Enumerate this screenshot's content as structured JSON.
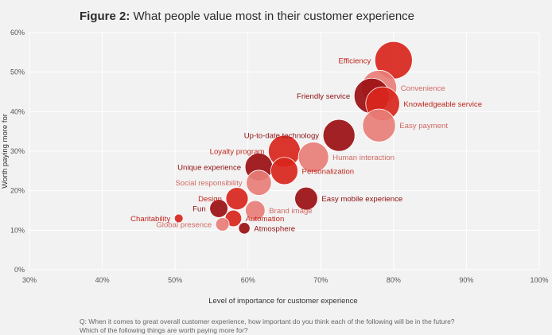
{
  "title": {
    "lead": "Figure 2:",
    "text": "What people value most in their customer experience"
  },
  "note": {
    "line1": "Q: When it comes to great overall customer experience, how important do you think each of the following will be in the future?",
    "line2": "Which of the following things are worth paying more for?"
  },
  "colors": {
    "background": "#f2f2f2",
    "grid": "#ffffff"
  },
  "chart_data": {
    "type": "scatter",
    "title": "What people value most in their customer experience",
    "xlabel": "Level of importance for customer experience",
    "ylabel": "Worth paying more for",
    "xlim": [
      30,
      100
    ],
    "ylim": [
      0,
      60
    ],
    "xticks": [
      30,
      40,
      50,
      60,
      70,
      80,
      90,
      100
    ],
    "yticks": [
      0,
      10,
      20,
      30,
      40,
      50,
      60
    ],
    "tick_suffix": "%",
    "grid": true,
    "points": [
      {
        "label": "Efficiency",
        "x": 80,
        "y": 53,
        "size": 100,
        "color": "#d9261c",
        "label_side": "left",
        "label_color": "#c0261d"
      },
      {
        "label": "Convenience",
        "x": 78,
        "y": 46,
        "size": 88,
        "color": "#e87e78",
        "label_side": "right",
        "label_color": "#d06a64"
      },
      {
        "label": "Friendly service",
        "x": 77,
        "y": 44,
        "size": 88,
        "color": "#9b0f12",
        "label_side": "left",
        "label_color": "#8e1113"
      },
      {
        "label": "Knowledgeable service",
        "x": 78.5,
        "y": 42,
        "size": 80,
        "color": "#d9261c",
        "label_side": "right",
        "label_color": "#c0261d"
      },
      {
        "label": "Easy payment",
        "x": 78,
        "y": 36.5,
        "size": 75,
        "color": "#e87e78",
        "label_side": "right",
        "label_color": "#d06a64"
      },
      {
        "label": "Up-to-date technology",
        "x": 72.5,
        "y": 34,
        "size": 70,
        "color": "#9b0f12",
        "label_side": "left",
        "label_color": "#8e1113"
      },
      {
        "label": "Loyalty program",
        "x": 65,
        "y": 30,
        "size": 70,
        "color": "#d9261c",
        "label_side": "left",
        "label_color": "#c0261d"
      },
      {
        "label": "Human interaction",
        "x": 69,
        "y": 28.5,
        "size": 62,
        "color": "#e87e78",
        "label_side": "right",
        "label_color": "#d06a64"
      },
      {
        "label": "Unique experience",
        "x": 61.5,
        "y": 26,
        "size": 50,
        "color": "#9b0f12",
        "label_side": "left",
        "label_color": "#8e1113"
      },
      {
        "label": "Personalization",
        "x": 65,
        "y": 25,
        "size": 48,
        "color": "#d9261c",
        "label_side": "right",
        "label_color": "#c0261d"
      },
      {
        "label": "Social responsibility",
        "x": 61.5,
        "y": 22,
        "size": 40,
        "color": "#e87e78",
        "label_side": "left",
        "label_color": "#d06a64"
      },
      {
        "label": "Design",
        "x": 58.5,
        "y": 18,
        "size": 30,
        "color": "#d9261c",
        "label_side": "left",
        "label_color": "#c0261d"
      },
      {
        "label": "Easy mobile experience",
        "x": 68,
        "y": 18,
        "size": 32,
        "color": "#9b0f12",
        "label_side": "right",
        "label_color": "#8e1113"
      },
      {
        "label": "Fun",
        "x": 56,
        "y": 15.5,
        "size": 18,
        "color": "#9b0f12",
        "label_side": "left",
        "label_color": "#8e1113"
      },
      {
        "label": "Brand image",
        "x": 61,
        "y": 15,
        "size": 22,
        "color": "#e87e78",
        "label_side": "right",
        "label_color": "#d06a64"
      },
      {
        "label": "Charitability",
        "x": 50.5,
        "y": 13,
        "size": 2,
        "color": "#d9261c",
        "label_side": "left",
        "label_color": "#c0261d"
      },
      {
        "label": "Automation",
        "x": 58,
        "y": 13,
        "size": 14,
        "color": "#d9261c",
        "label_side": "right",
        "label_color": "#c0261d"
      },
      {
        "label": "Global presence",
        "x": 56.5,
        "y": 11.5,
        "size": 8,
        "color": "#e87e78",
        "label_side": "left",
        "label_color": "#d06a64"
      },
      {
        "label": "Atmosphere",
        "x": 59.5,
        "y": 10.5,
        "size": 5,
        "color": "#9b0f12",
        "label_side": "right",
        "label_color": "#8e1113"
      }
    ]
  }
}
